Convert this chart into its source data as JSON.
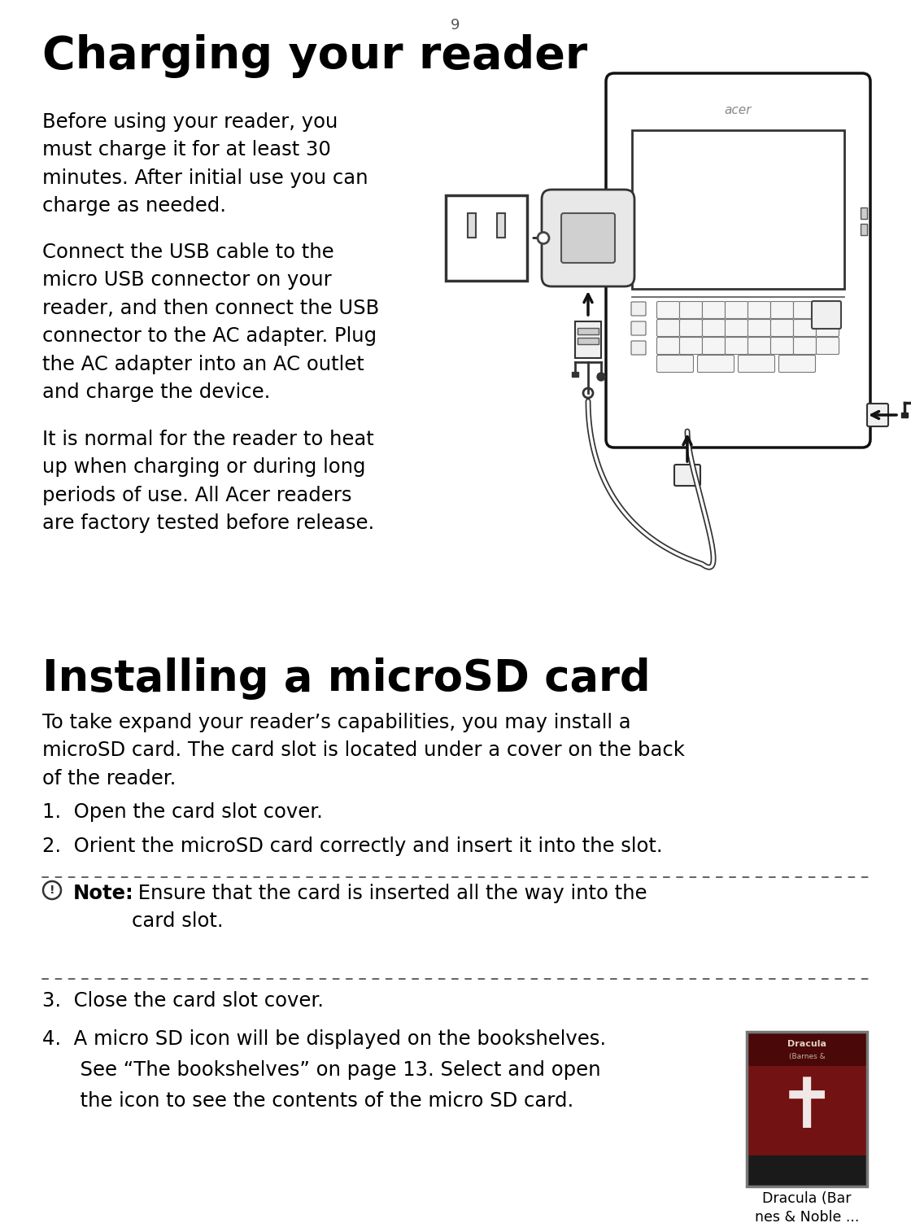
{
  "page_number": "9",
  "title1": "Charging your reader",
  "title2": "Installing a microSD card",
  "bg_color": "#ffffff",
  "text_color": "#000000",
  "para1": "Before using your reader, you\nmust charge it for at least 30\nminutes. After initial use you can\ncharge as needed.",
  "para2": "Connect the USB cable to the\nmicro USB connector on your\nreader, and then connect the USB\nconnector to the AC adapter. Plug\nthe AC adapter into an AC outlet\nand charge the device.",
  "para3": "It is normal for the reader to heat\nup when charging or during long\nperiods of use. All Acer readers\nare factory tested before release.",
  "para4": "To take expand your reader’s capabilities, you may install a\nmicroSD card. The card slot is located under a cover on the back\nof the reader.",
  "item1": "1.  Open the card slot cover.",
  "item2": "2.  Orient the microSD card correctly and insert it into the slot.",
  "note_label": "Note:",
  "note_body": " Ensure that the card is inserted all the way into the\ncard slot.",
  "item3": "3.  Close the card slot cover.",
  "item4_a": "4.  A micro SD icon will be displayed on the bookshelves.",
  "item4_b": "      See “The bookshelves” on page 13. Select and open",
  "item4_c": "      the icon to see the contents of the micro SD card.",
  "dracula_caption": "Dracula (Bar\nnes & Noble ..."
}
